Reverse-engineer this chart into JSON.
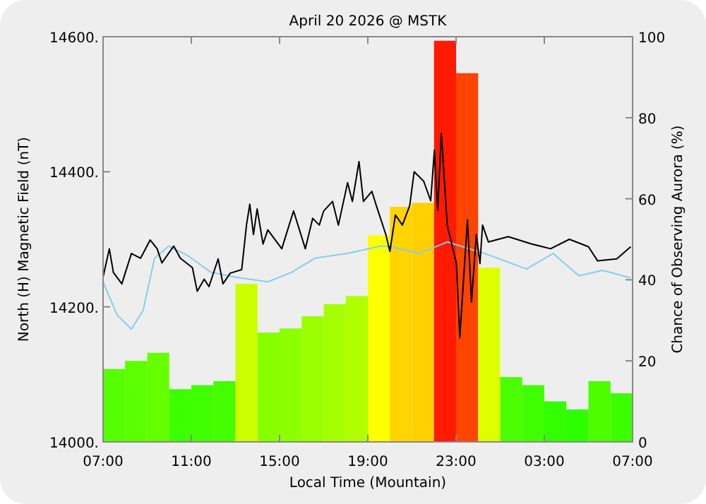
{
  "chart_data": {
    "type": "bar",
    "title": "April 20 2026 @ MSTK",
    "xlabel": "Local Time (Mountain)",
    "ylabel": "North (H) Magnetic Field (nT)",
    "y2label": "Chance of Observing Aurora (%)",
    "xlim": [
      "2026-04-20T07:00",
      "2026-04-21T07:00"
    ],
    "xticks": [
      {
        "value": "2026-04-20T07:00",
        "label": "07:00"
      },
      {
        "value": "2026-04-20T11:00",
        "label": "11:00"
      },
      {
        "value": "2026-04-20T15:00",
        "label": "15:00"
      },
      {
        "value": "2026-04-20T19:00",
        "label": "19:00"
      },
      {
        "value": "2026-04-20T23:00",
        "label": "23:00"
      },
      {
        "value": "2026-04-21T03:00",
        "label": "03:00"
      },
      {
        "value": "2026-04-21T07:00",
        "label": "07:00"
      }
    ],
    "ylim": [
      14000,
      14600
    ],
    "yticks": [
      {
        "value": 14000,
        "label": "14000."
      },
      {
        "value": 14200,
        "label": "14200."
      },
      {
        "value": 14400,
        "label": "14400."
      },
      {
        "value": 14600,
        "label": "14600."
      }
    ],
    "y2lim": [
      0,
      100
    ],
    "y2ticks": [
      0,
      20,
      40,
      60,
      80,
      100
    ],
    "grid": false,
    "series": [
      {
        "axis": "y2",
        "x": [
          "2026-04-20T07:30",
          "2026-04-20T08:30",
          "2026-04-20T09:30",
          "2026-04-20T10:30",
          "2026-04-20T11:30",
          "2026-04-20T12:30",
          "2026-04-20T13:30",
          "2026-04-20T14:30",
          "2026-04-20T15:30",
          "2026-04-20T16:30",
          "2026-04-20T17:30",
          "2026-04-20T18:30",
          "2026-04-20T19:30",
          "2026-04-20T20:30",
          "2026-04-20T21:30",
          "2026-04-20T22:30",
          "2026-04-20T23:30",
          "2026-04-21T00:30",
          "2026-04-21T01:30",
          "2026-04-21T02:30",
          "2026-04-21T03:30",
          "2026-04-21T04:30",
          "2026-04-21T05:30",
          "2026-04-21T06:30"
        ],
        "values": [
          18,
          20,
          22,
          13,
          14,
          15,
          39,
          27,
          28,
          31,
          34,
          36,
          51,
          58,
          59,
          99,
          91,
          43,
          16,
          14,
          10,
          8,
          15,
          12
        ],
        "colors": [
          "#55ff00",
          "#5cff00",
          "#66ff00",
          "#3cff00",
          "#40ff00",
          "#44ff00",
          "#ccff00",
          "#88ff00",
          "#8cff00",
          "#99ff00",
          "#a6ff00",
          "#b0ff00",
          "#ffff00",
          "#ffd400",
          "#ffd000",
          "#ff1a00",
          "#ff4400",
          "#ddff00",
          "#4cff00",
          "#40ff00",
          "#33ff00",
          "#2cff00",
          "#4cff00",
          "#3cff00"
        ]
      },
      {
        "type": "line",
        "color": "#87ceeb",
        "x": [
          "2026-04-20T07:00",
          "2026-04-20T07:38",
          "2026-04-20T08:17",
          "2026-04-20T08:49",
          "2026-04-20T09:20",
          "2026-04-20T09:59",
          "2026-04-20T10:50",
          "2026-04-20T11:54",
          "2026-04-20T12:58",
          "2026-04-20T14:28",
          "2026-04-20T15:32",
          "2026-04-20T16:36",
          "2026-04-20T18:05",
          "2026-04-20T19:35",
          "2026-04-20T20:03",
          "2026-04-20T21:20",
          "2026-04-20T22:36",
          "2026-04-21T00:18",
          "2026-04-21T02:12",
          "2026-04-21T03:24",
          "2026-04-21T04:34",
          "2026-04-21T05:38",
          "2026-04-21T06:54"
        ],
        "values": [
          14237,
          14188,
          14167,
          14195,
          14272,
          14290,
          14276,
          14251,
          14244,
          14237,
          14251,
          14272,
          14279,
          14290,
          14289,
          14279,
          14296,
          14279,
          14256,
          14279,
          14246,
          14254,
          14243
        ]
      },
      {
        "type": "line",
        "color": "#000000",
        "x": [
          "2026-04-20T07:00",
          "2026-04-20T07:17",
          "2026-04-20T07:28",
          "2026-04-20T07:51",
          "2026-04-20T08:17",
          "2026-04-20T08:42",
          "2026-04-20T09:08",
          "2026-04-20T09:27",
          "2026-04-20T09:40",
          "2026-04-20T10:12",
          "2026-04-20T10:30",
          "2026-04-20T11:03",
          "2026-04-20T11:16",
          "2026-04-20T11:35",
          "2026-04-20T11:48",
          "2026-04-20T12:13",
          "2026-04-20T12:26",
          "2026-04-20T12:46",
          "2026-04-20T13:17",
          "2026-04-20T13:30",
          "2026-04-20T13:39",
          "2026-04-20T13:49",
          "2026-04-20T13:59",
          "2026-04-20T14:15",
          "2026-04-20T14:28",
          "2026-04-20T15:06",
          "2026-04-20T15:38",
          "2026-04-20T16:10",
          "2026-04-20T16:30",
          "2026-04-20T16:48",
          "2026-04-20T17:00",
          "2026-04-20T17:24",
          "2026-04-20T17:40",
          "2026-04-20T18:05",
          "2026-04-20T18:18",
          "2026-04-20T18:36",
          "2026-04-20T18:48",
          "2026-04-20T19:11",
          "2026-04-20T19:23",
          "2026-04-20T19:49",
          "2026-04-20T20:00",
          "2026-04-20T20:15",
          "2026-04-20T20:34",
          "2026-04-20T20:54",
          "2026-04-20T21:06",
          "2026-04-20T21:32",
          "2026-04-20T21:51",
          "2026-04-20T22:01",
          "2026-04-20T22:10",
          "2026-04-20T22:20",
          "2026-04-20T22:36",
          "2026-04-20T23:01",
          "2026-04-20T23:10",
          "2026-04-20T23:31",
          "2026-04-20T23:42",
          "2026-04-20T23:55",
          "2026-04-21T00:05",
          "2026-04-21T00:12",
          "2026-04-21T00:28",
          "2026-04-21T01:22",
          "2026-04-21T02:26",
          "2026-04-21T03:17",
          "2026-04-21T04:08",
          "2026-04-21T05:00",
          "2026-04-21T05:25",
          "2026-04-21T06:17",
          "2026-04-21T06:55"
        ],
        "values": [
          14244,
          14286,
          14251,
          14234,
          14279,
          14272,
          14299,
          14286,
          14265,
          14290,
          14272,
          14258,
          14223,
          14241,
          14230,
          14271,
          14234,
          14250,
          14255,
          14321,
          14352,
          14307,
          14345,
          14293,
          14314,
          14286,
          14342,
          14286,
          14331,
          14321,
          14342,
          14356,
          14321,
          14384,
          14356,
          14415,
          14356,
          14371,
          14350,
          14307,
          14282,
          14336,
          14321,
          14350,
          14400,
          14386,
          14357,
          14432,
          14343,
          14457,
          14321,
          14264,
          14154,
          14329,
          14207,
          14307,
          14264,
          14321,
          14296,
          14304,
          14293,
          14286,
          14300,
          14289,
          14268,
          14271,
          14289
        ]
      }
    ]
  }
}
